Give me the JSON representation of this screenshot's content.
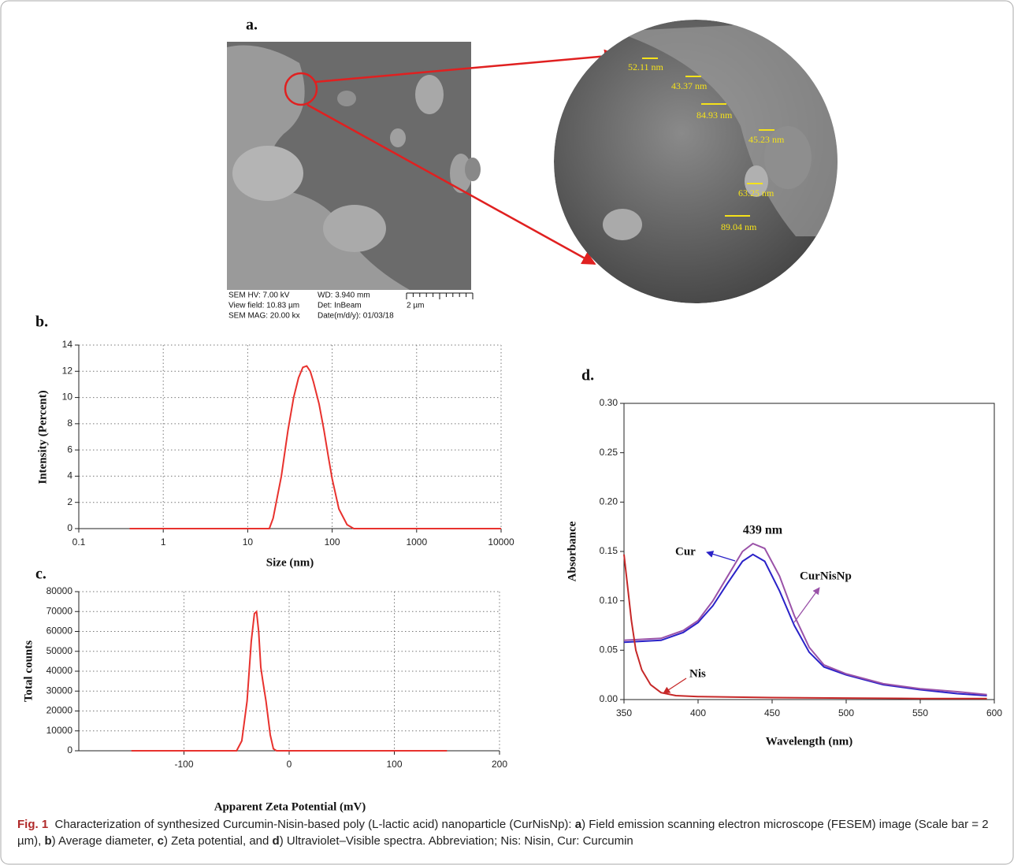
{
  "panel_labels": [
    "a.",
    "b.",
    "c.",
    "d."
  ],
  "sem": {
    "measurements": [
      "52.11 nm",
      "43.37 nm",
      "84.93 nm",
      "45.23 nm",
      "63.25 nm",
      "89.04 nm"
    ],
    "metadata": [
      "SEM HV: 7.00 kV",
      "WD: 3.940 mm",
      "View field: 10.83 µm",
      "Det: InBeam",
      "SEM MAG: 20.00 kx",
      "Date(m/d/y): 01/03/18"
    ],
    "scale_bar": "2 µm"
  },
  "chart_data": [
    {
      "type": "line",
      "x_label": "Size (nm)",
      "y_label": "Intensity (Percent)",
      "xlog": true,
      "grid": true,
      "xlim": [
        0.1,
        10000
      ],
      "xticks": [
        0.1,
        1,
        10,
        100,
        1000,
        10000
      ],
      "ylim": [
        0,
        14
      ],
      "yticks": [
        0,
        2,
        4,
        6,
        8,
        10,
        12,
        14
      ],
      "series": [
        {
          "color": "#e8322e",
          "x": [
            0.4,
            1,
            10,
            18,
            20,
            25,
            30,
            35,
            40,
            45,
            50,
            55,
            60,
            70,
            80,
            90,
            100,
            120,
            150,
            180,
            200,
            1000,
            10000
          ],
          "values": [
            0,
            0,
            0,
            0,
            0.8,
            4,
            7.5,
            10,
            11.5,
            12.3,
            12.4,
            12,
            11.2,
            9.5,
            7.5,
            5.5,
            3.8,
            1.5,
            0.3,
            0,
            0,
            0,
            0
          ]
        }
      ]
    },
    {
      "type": "line",
      "x_label": "Apparent Zeta Potential (mV)",
      "y_label": "Total counts",
      "xlog": false,
      "grid": true,
      "xlim": [
        -200,
        200
      ],
      "xticks": [
        -100,
        0,
        100,
        200
      ],
      "ylim": [
        0,
        80000
      ],
      "yticks": [
        0,
        10000,
        20000,
        30000,
        40000,
        50000,
        60000,
        70000,
        80000
      ],
      "series": [
        {
          "color": "#e8322e",
          "x": [
            -150,
            -50,
            -45,
            -40,
            -36,
            -33,
            -31,
            -29,
            -27,
            -25,
            -22,
            -18,
            -15,
            -12,
            150
          ],
          "values": [
            0,
            0,
            5000,
            25000,
            55000,
            69000,
            70000,
            60000,
            42000,
            35000,
            25000,
            8000,
            1000,
            0,
            0
          ]
        }
      ]
    },
    {
      "type": "line",
      "x_label": "Wavelength (nm)",
      "y_label": "Absorbance",
      "xlog": false,
      "grid": false,
      "xlim": [
        350,
        600
      ],
      "xticks": [
        350,
        400,
        450,
        500,
        550,
        600
      ],
      "ylim": [
        0,
        0.3
      ],
      "yticks": [
        {
          "value": 0,
          "label": "0.00"
        },
        0.05,
        {
          "value": 0.1,
          "label": "0.10"
        },
        0.15,
        {
          "value": 0.2,
          "label": "0.20"
        },
        0.25,
        {
          "value": 0.3,
          "label": "0.30"
        }
      ],
      "annotation": "439 nm",
      "series": [
        {
          "name": "Cur",
          "color": "#2a22c8",
          "x": [
            350,
            375,
            390,
            400,
            410,
            420,
            430,
            437,
            445,
            455,
            465,
            475,
            485,
            500,
            525,
            550,
            575,
            595
          ],
          "values": [
            0.058,
            0.06,
            0.068,
            0.078,
            0.095,
            0.118,
            0.14,
            0.147,
            0.14,
            0.11,
            0.075,
            0.048,
            0.033,
            0.025,
            0.015,
            0.01,
            0.006,
            0.004
          ]
        },
        {
          "name": "CurNisNp",
          "color": "#9a52a8",
          "x": [
            350,
            375,
            390,
            400,
            410,
            420,
            430,
            437,
            445,
            455,
            465,
            475,
            485,
            500,
            525,
            550,
            575,
            595
          ],
          "values": [
            0.06,
            0.062,
            0.07,
            0.08,
            0.1,
            0.125,
            0.15,
            0.158,
            0.153,
            0.125,
            0.085,
            0.053,
            0.035,
            0.026,
            0.016,
            0.011,
            0.008,
            0.005
          ]
        },
        {
          "name": "Nis",
          "color": "#c62828",
          "x": [
            350,
            352,
            355,
            358,
            362,
            368,
            375,
            385,
            400,
            450,
            500,
            550,
            595
          ],
          "values": [
            0.147,
            0.12,
            0.08,
            0.05,
            0.03,
            0.015,
            0.007,
            0.004,
            0.003,
            0.002,
            0.0015,
            0.001,
            0.001
          ]
        }
      ]
    }
  ],
  "caption": [
    {
      "text": "Fig. 1",
      "bold": true
    },
    {
      "text": "  Characterization of synthesized Curcumin-Nisin-based poly (L-lactic acid) nanoparticle (CurNisNp): ",
      "bold": false
    },
    {
      "text": "a",
      "bold": true
    },
    {
      "text": ") Field emission scanning electron microscope (FESEM) image (Scale bar = 2 µm), ",
      "bold": false
    },
    {
      "text": "b",
      "bold": true
    },
    {
      "text": ") Average diameter, ",
      "bold": false
    },
    {
      "text": "c",
      "bold": true
    },
    {
      "text": ") Zeta potential, and ",
      "bold": false
    },
    {
      "text": "d",
      "bold": true
    },
    {
      "text": ") Ultraviolet–Visible spectra. Abbreviation; Nis: Nisin, Cur: Curcumin",
      "bold": false
    }
  ]
}
